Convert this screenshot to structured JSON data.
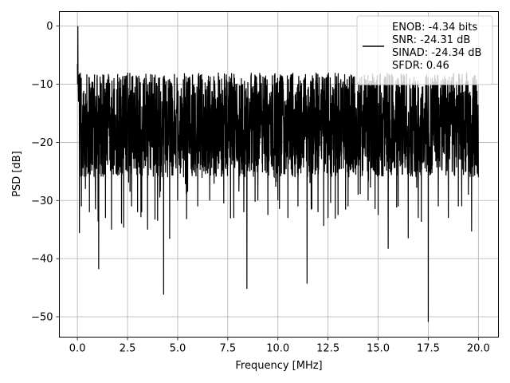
{
  "chart_data": {
    "type": "line",
    "xlabel": "Frequency [MHz]",
    "ylabel": "PSD [dB]",
    "xlim": [
      -0.9,
      21.0
    ],
    "ylim": [
      -53.5,
      2.5
    ],
    "xticks": [
      0.0,
      2.5,
      5.0,
      7.5,
      10.0,
      12.5,
      15.0,
      17.5,
      20.0
    ],
    "xtick_labels": [
      "0.0",
      "2.5",
      "5.0",
      "7.5",
      "10.0",
      "12.5",
      "15.0",
      "17.5",
      "20.0"
    ],
    "yticks": [
      0,
      -10,
      -20,
      -30,
      -40,
      -50
    ],
    "ytick_labels": [
      "0",
      "−10",
      "−20",
      "−30",
      "−40",
      "−50"
    ],
    "grid": true,
    "legend_placement": "top-right",
    "legend_lines": [
      "ENOB: -4.34 bits",
      "SNR: -24.31 dB",
      "SINAD: -24.34 dB",
      "SFDR: 0.46"
    ],
    "line_color": "#000000",
    "series": [
      {
        "x": [
          0.0,
          0.02,
          0.05,
          0.1,
          0.15,
          0.2,
          0.3,
          0.4,
          0.5,
          0.6,
          0.75,
          0.9,
          1.0,
          1.06,
          1.2,
          1.4,
          1.6,
          1.7,
          2.0,
          2.2,
          2.5,
          2.7,
          2.9,
          3.0,
          3.3,
          3.5,
          3.8,
          4.0,
          4.2,
          4.3,
          4.5,
          4.6,
          4.8,
          5.0,
          5.3,
          5.5,
          5.7,
          6.0,
          6.3,
          6.6,
          7.0,
          7.3,
          7.5,
          7.8,
          8.0,
          8.3,
          8.45,
          8.6,
          9.0,
          9.3,
          9.5,
          9.8,
          10.0,
          10.3,
          10.5,
          10.8,
          11.0,
          11.2,
          11.45,
          11.6,
          12.0,
          12.3,
          12.5,
          12.8,
          13.0,
          13.3,
          13.5,
          13.8,
          14.0,
          14.3,
          14.5,
          14.8,
          15.0,
          15.2,
          15.5,
          15.8,
          16.0,
          16.3,
          16.5,
          16.8,
          17.0,
          17.3,
          17.5,
          17.7,
          18.0,
          18.3,
          18.5,
          18.8,
          19.0,
          19.3,
          19.5,
          19.8,
          20.0
        ],
        "y": [
          -6.5,
          0.0,
          -13.0,
          -35.6,
          -18.0,
          -31.0,
          -22.0,
          -28.0,
          -17.0,
          -32.0,
          -21.0,
          -31.5,
          -18.0,
          -41.8,
          -24.0,
          -33.0,
          -15.0,
          -35.0,
          -23.0,
          -34.0,
          -19.0,
          -31.0,
          -22.0,
          -32.0,
          -20.0,
          -35.0,
          -24.0,
          -33.5,
          -21.0,
          -46.2,
          -26.0,
          -36.6,
          -22.0,
          -30.0,
          -20.0,
          -28.5,
          -24.0,
          -31.0,
          -19.0,
          -30.0,
          -22.0,
          -30.5,
          -24.0,
          -33.0,
          -20.0,
          -32.0,
          -45.2,
          -25.0,
          -30.0,
          -22.0,
          -32.5,
          -21.0,
          -30.0,
          -24.0,
          -33.0,
          -20.0,
          -31.0,
          -22.0,
          -44.3,
          -27.0,
          -32.0,
          -21.0,
          -33.0,
          -24.0,
          -32.5,
          -20.0,
          -31.0,
          -23.0,
          -29.0,
          -21.0,
          -30.0,
          -25.0,
          -32.5,
          -20.0,
          -38.3,
          -24.0,
          -31.0,
          -22.0,
          -36.5,
          -25.0,
          -33.0,
          -20.0,
          -50.9,
          -24.0,
          -31.0,
          -21.0,
          -33.0,
          -22.0,
          -31.0,
          -20.0,
          -29.0,
          -24.0,
          -26.0
        ]
      }
    ]
  }
}
